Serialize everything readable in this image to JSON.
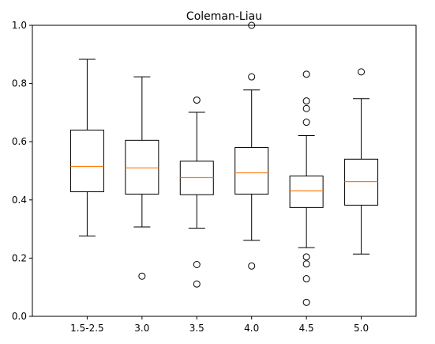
{
  "chart_data": {
    "type": "boxplot",
    "title": "Coleman-Liau",
    "xlabel": "",
    "ylabel": "",
    "ylim": [
      0.0,
      1.0
    ],
    "yticks": [
      0.0,
      0.2,
      0.4,
      0.6,
      0.8,
      1.0
    ],
    "ytick_labels": [
      "0.0",
      "0.2",
      "0.4",
      "0.6",
      "0.8",
      "1.0"
    ],
    "grid": false,
    "colors": {
      "box": "#000000",
      "median": "#ff7f0e"
    },
    "categories": [
      "1.5-2.5",
      "3.0",
      "3.5",
      "4.0",
      "4.5",
      "5.0"
    ],
    "boxes": [
      {
        "category": "1.5-2.5",
        "whisker_low": 0.276,
        "q1": 0.428,
        "median": 0.515,
        "q3": 0.64,
        "whisker_high": 0.883,
        "outliers": []
      },
      {
        "category": "3.0",
        "whisker_low": 0.307,
        "q1": 0.42,
        "median": 0.51,
        "q3": 0.605,
        "whisker_high": 0.823,
        "outliers": [
          0.138
        ]
      },
      {
        "category": "3.5",
        "whisker_low": 0.303,
        "q1": 0.418,
        "median": 0.477,
        "q3": 0.533,
        "whisker_high": 0.701,
        "outliers": [
          0.743,
          0.178,
          0.111
        ]
      },
      {
        "category": "4.0",
        "whisker_low": 0.261,
        "q1": 0.42,
        "median": 0.493,
        "q3": 0.58,
        "whisker_high": 0.778,
        "outliers": [
          1.0,
          0.823,
          0.173
        ]
      },
      {
        "category": "4.5",
        "whisker_low": 0.236,
        "q1": 0.374,
        "median": 0.431,
        "q3": 0.482,
        "whisker_high": 0.621,
        "outliers": [
          0.832,
          0.74,
          0.714,
          0.667,
          0.204,
          0.18,
          0.129,
          0.048
        ]
      },
      {
        "category": "5.0",
        "whisker_low": 0.214,
        "q1": 0.382,
        "median": 0.463,
        "q3": 0.54,
        "whisker_high": 0.748,
        "outliers": [
          0.84
        ]
      }
    ]
  }
}
